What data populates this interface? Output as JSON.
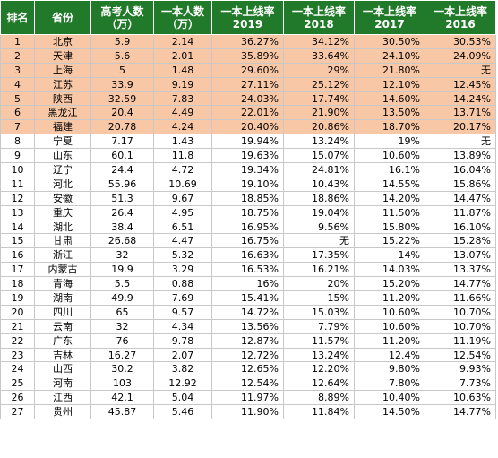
{
  "headers": [
    "排名",
    "省份",
    "高考人数\n（万）",
    "一本人数\n（万）",
    "一本上线率\n2019",
    "一本上线率\n2018",
    "一本上线率\n2017",
    "一本上线率\n2016"
  ],
  "rows": [
    {
      "rank": "1",
      "province": "北京",
      "exam_count": "5.9",
      "tier1_count": "2.14",
      "r2019": "36.27%",
      "r2018": "34.12%",
      "r2017": "30.50%",
      "r2016": "30.53%",
      "highlight": true
    },
    {
      "rank": "2",
      "province": "天津",
      "exam_count": "5.6",
      "tier1_count": "2.01",
      "r2019": "35.89%",
      "r2018": "33.64%",
      "r2017": "24.10%",
      "r2016": "24.09%",
      "highlight": true
    },
    {
      "rank": "3",
      "province": "上海",
      "exam_count": "5",
      "tier1_count": "1.48",
      "r2019": "29.60%",
      "r2018": "29%",
      "r2017": "21.80%",
      "r2016": "无",
      "highlight": true
    },
    {
      "rank": "4",
      "province": "江苏",
      "exam_count": "33.9",
      "tier1_count": "9.19",
      "r2019": "27.11%",
      "r2018": "25.12%",
      "r2017": "12.10%",
      "r2016": "12.45%",
      "highlight": true
    },
    {
      "rank": "5",
      "province": "陕西",
      "exam_count": "32.59",
      "tier1_count": "7.83",
      "r2019": "24.03%",
      "r2018": "17.74%",
      "r2017": "14.60%",
      "r2016": "14.24%",
      "highlight": true
    },
    {
      "rank": "6",
      "province": "黑龙江",
      "exam_count": "20.4",
      "tier1_count": "4.49",
      "r2019": "22.01%",
      "r2018": "21.90%",
      "r2017": "13.50%",
      "r2016": "13.71%",
      "highlight": true
    },
    {
      "rank": "7",
      "province": "福建",
      "exam_count": "20.78",
      "tier1_count": "4.24",
      "r2019": "20.40%",
      "r2018": "20.86%",
      "r2017": "18.70%",
      "r2016": "20.17%",
      "highlight": true
    },
    {
      "rank": "8",
      "province": "宁夏",
      "exam_count": "7.17",
      "tier1_count": "1.43",
      "r2019": "19.94%",
      "r2018": "13.24%",
      "r2017": "19%",
      "r2016": "无",
      "highlight": false
    },
    {
      "rank": "9",
      "province": "山东",
      "exam_count": "60.1",
      "tier1_count": "11.8",
      "r2019": "19.63%",
      "r2018": "15.07%",
      "r2017": "10.60%",
      "r2016": "13.89%",
      "highlight": false
    },
    {
      "rank": "10",
      "province": "辽宁",
      "exam_count": "24.4",
      "tier1_count": "4.72",
      "r2019": "19.34%",
      "r2018": "24.81%",
      "r2017": "16.1%",
      "r2016": "16.04%",
      "highlight": false
    },
    {
      "rank": "11",
      "province": "河北",
      "exam_count": "55.96",
      "tier1_count": "10.69",
      "r2019": "19.10%",
      "r2018": "10.43%",
      "r2017": "14.55%",
      "r2016": "15.86%",
      "highlight": false
    },
    {
      "rank": "12",
      "province": "安徽",
      "exam_count": "51.3",
      "tier1_count": "9.67",
      "r2019": "18.85%",
      "r2018": "18.86%",
      "r2017": "14.20%",
      "r2016": "14.47%",
      "highlight": false
    },
    {
      "rank": "13",
      "province": "重庆",
      "exam_count": "26.4",
      "tier1_count": "4.95",
      "r2019": "18.75%",
      "r2018": "19.04%",
      "r2017": "11.50%",
      "r2016": "11.87%",
      "highlight": false
    },
    {
      "rank": "14",
      "province": "湖北",
      "exam_count": "38.4",
      "tier1_count": "6.51",
      "r2019": "16.95%",
      "r2018": "9.56%",
      "r2017": "15.80%",
      "r2016": "16.10%",
      "highlight": false
    },
    {
      "rank": "15",
      "province": "甘肃",
      "exam_count": "26.68",
      "tier1_count": "4.47",
      "r2019": "16.75%",
      "r2018": "无",
      "r2017": "15.22%",
      "r2016": "15.28%",
      "highlight": false
    },
    {
      "rank": "16",
      "province": "浙江",
      "exam_count": "32",
      "tier1_count": "5.32",
      "r2019": "16.63%",
      "r2018": "17.35%",
      "r2017": "14%",
      "r2016": "13.07%",
      "highlight": false
    },
    {
      "rank": "17",
      "province": "内蒙古",
      "exam_count": "19.9",
      "tier1_count": "3.29",
      "r2019": "16.53%",
      "r2018": "16.21%",
      "r2017": "14.03%",
      "r2016": "13.37%",
      "highlight": false
    },
    {
      "rank": "18",
      "province": "青海",
      "exam_count": "5.5",
      "tier1_count": "0.88",
      "r2019": "16%",
      "r2018": "20%",
      "r2017": "15.20%",
      "r2016": "14.77%",
      "highlight": false
    },
    {
      "rank": "19",
      "province": "湖南",
      "exam_count": "49.9",
      "tier1_count": "7.69",
      "r2019": "15.41%",
      "r2018": "15%",
      "r2017": "11.20%",
      "r2016": "11.66%",
      "highlight": false
    },
    {
      "rank": "20",
      "province": "四川",
      "exam_count": "65",
      "tier1_count": "9.57",
      "r2019": "14.72%",
      "r2018": "15.03%",
      "r2017": "10.60%",
      "r2016": "10.70%",
      "highlight": false
    },
    {
      "rank": "21",
      "province": "云南",
      "exam_count": "32",
      "tier1_count": "4.34",
      "r2019": "13.56%",
      "r2018": "7.79%",
      "r2017": "10.60%",
      "r2016": "10.70%",
      "highlight": false
    },
    {
      "rank": "22",
      "province": "广东",
      "exam_count": "76",
      "tier1_count": "9.78",
      "r2019": "12.87%",
      "r2018": "11.57%",
      "r2017": "11.20%",
      "r2016": "11.19%",
      "highlight": false
    },
    {
      "rank": "23",
      "province": "吉林",
      "exam_count": "16.27",
      "tier1_count": "2.07",
      "r2019": "12.72%",
      "r2018": "13.24%",
      "r2017": "12.4%",
      "r2016": "12.54%",
      "highlight": false
    },
    {
      "rank": "24",
      "province": "山西",
      "exam_count": "30.2",
      "tier1_count": "3.82",
      "r2019": "12.65%",
      "r2018": "12.20%",
      "r2017": "9.80%",
      "r2016": "9.93%",
      "highlight": false
    },
    {
      "rank": "25",
      "province": "河南",
      "exam_count": "103",
      "tier1_count": "12.92",
      "r2019": "12.54%",
      "r2018": "12.64%",
      "r2017": "7.80%",
      "r2016": "7.73%",
      "highlight": false
    },
    {
      "rank": "26",
      "province": "江西",
      "exam_count": "42.1",
      "tier1_count": "5.04",
      "r2019": "11.97%",
      "r2018": "8.89%",
      "r2017": "10.40%",
      "r2016": "10.63%",
      "highlight": false
    },
    {
      "rank": "27",
      "province": "贵州",
      "exam_count": "45.87",
      "tier1_count": "5.46",
      "r2019": "11.90%",
      "r2018": "11.84%",
      "r2017": "14.50%",
      "r2016": "14.77%",
      "highlight": false
    }
  ]
}
